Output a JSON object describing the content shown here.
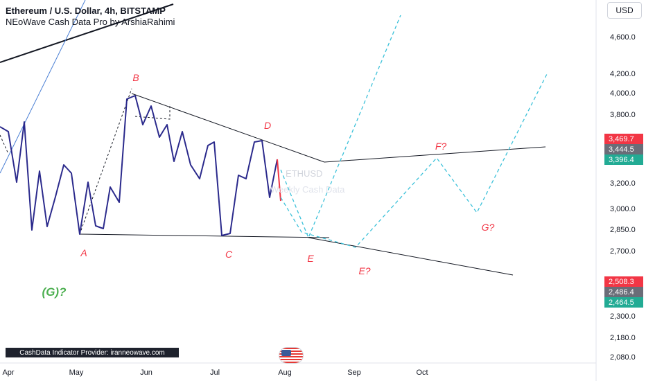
{
  "header": {
    "title": "Ethereum / U.S. Dollar, 4h, BITSTAMP",
    "indicator": "NEoWave Cash Data Pro by ArshiaRahimi"
  },
  "currency_button": "USD",
  "provider_label": "CashData Indicator Provider: iranneowave.com",
  "watermark": {
    "symbol": "ETHUSD",
    "subtitle": "Weekly Cash Data"
  },
  "price_axis": {
    "ticks": [
      "4,600.0",
      "4,200.0",
      "4,000.0",
      "3,800.0",
      "3,200.0",
      "3,000.0",
      "2,850.0",
      "2,700.0",
      "2,300.0",
      "2,180.0",
      "2,080.0"
    ],
    "badges": [
      {
        "label": "3,469.7",
        "color": "#f23645"
      },
      {
        "label": "3,444.5",
        "color": "#6a6d78"
      },
      {
        "label": "3,396.4",
        "color": "#22ab94"
      },
      {
        "label": "2,508.3",
        "color": "#f23645"
      },
      {
        "label": "2,486.4",
        "color": "#6a6d78"
      },
      {
        "label": "2,464.5",
        "color": "#22ab94"
      }
    ]
  },
  "time_axis": {
    "labels": [
      "Apr",
      "May",
      "Jun",
      "Jul",
      "Aug",
      "Sep",
      "Oct"
    ]
  },
  "wave_labels": [
    {
      "text": "A",
      "color": "#f23645"
    },
    {
      "text": "B",
      "color": "#f23645"
    },
    {
      "text": "C",
      "color": "#f23645"
    },
    {
      "text": "D",
      "color": "#f23645"
    },
    {
      "text": "E",
      "color": "#f23645"
    },
    {
      "text": "E?",
      "color": "#f23645"
    },
    {
      "text": "F?",
      "color": "#f23645"
    },
    {
      "text": "G?",
      "color": "#f23645"
    },
    {
      "text": "(G)?",
      "color": "#4caf50"
    }
  ],
  "colors": {
    "price_line": "#2b2a8c",
    "projection": "#3bc1d9",
    "trend_line": "#131722",
    "blue_line": "#4a7fd4"
  }
}
